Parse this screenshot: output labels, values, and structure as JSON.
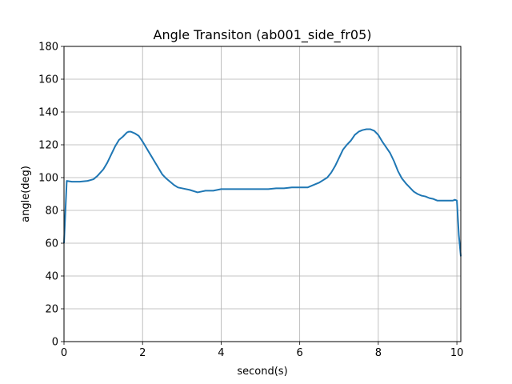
{
  "chart_data": {
    "type": "line",
    "title": "Angle Transiton (ab001_side_fr05)",
    "xlabel": "second(s)",
    "ylabel": "angle(deg)",
    "xlim": [
      0,
      10.1
    ],
    "ylim": [
      0,
      180
    ],
    "xticks": [
      0,
      2,
      4,
      6,
      8,
      10
    ],
    "xtick_labels": [
      "0",
      "2",
      "4",
      "6",
      "8",
      "10"
    ],
    "yticks": [
      0,
      20,
      40,
      60,
      80,
      100,
      120,
      140,
      160,
      180
    ],
    "ytick_labels": [
      "0",
      "20",
      "40",
      "60",
      "80",
      "100",
      "120",
      "140",
      "160",
      "180"
    ],
    "grid": true,
    "line_color": "#1f77b4",
    "series": [
      {
        "x": [
          0.0,
          0.07,
          0.2,
          0.4,
          0.6,
          0.75,
          0.85,
          1.0,
          1.1,
          1.2,
          1.3,
          1.4,
          1.5,
          1.6,
          1.65,
          1.7,
          1.8,
          1.9,
          2.0,
          2.1,
          2.2,
          2.3,
          2.4,
          2.5,
          2.6,
          2.7,
          2.8,
          2.9,
          3.0,
          3.2,
          3.4,
          3.5,
          3.6,
          3.8,
          4.0,
          4.2,
          4.5,
          4.8,
          5.0,
          5.2,
          5.4,
          5.6,
          5.8,
          6.0,
          6.1,
          6.2,
          6.4,
          6.5,
          6.6,
          6.7,
          6.8,
          6.9,
          7.0,
          7.1,
          7.2,
          7.3,
          7.4,
          7.5,
          7.6,
          7.7,
          7.8,
          7.9,
          8.0,
          8.1,
          8.2,
          8.3,
          8.4,
          8.5,
          8.6,
          8.7,
          8.8,
          8.9,
          9.0,
          9.1,
          9.2,
          9.3,
          9.4,
          9.5,
          9.6,
          9.7,
          9.8,
          9.9,
          9.95,
          10.0,
          10.05,
          10.1
        ],
        "y": [
          60,
          98,
          97.5,
          97.5,
          98,
          99,
          101,
          105,
          109,
          114,
          119,
          123,
          125,
          127.5,
          128,
          128,
          127,
          125.5,
          122,
          118,
          114,
          110,
          106,
          102,
          99.5,
          97.5,
          95.5,
          94,
          93.5,
          92.5,
          91,
          91.5,
          92,
          92,
          93,
          93,
          93,
          93,
          93,
          93,
          93.5,
          93.5,
          94,
          94,
          94,
          94,
          96,
          97,
          98.5,
          100,
          103,
          107,
          112,
          117,
          120,
          122.5,
          126,
          128,
          129,
          129.5,
          129.5,
          128.5,
          126,
          122,
          118.5,
          115,
          110,
          104,
          99.5,
          96.5,
          94,
          91.5,
          90,
          89,
          88.5,
          87.5,
          87,
          86,
          86,
          86,
          86,
          86,
          86.5,
          86,
          65,
          52
        ]
      }
    ]
  }
}
